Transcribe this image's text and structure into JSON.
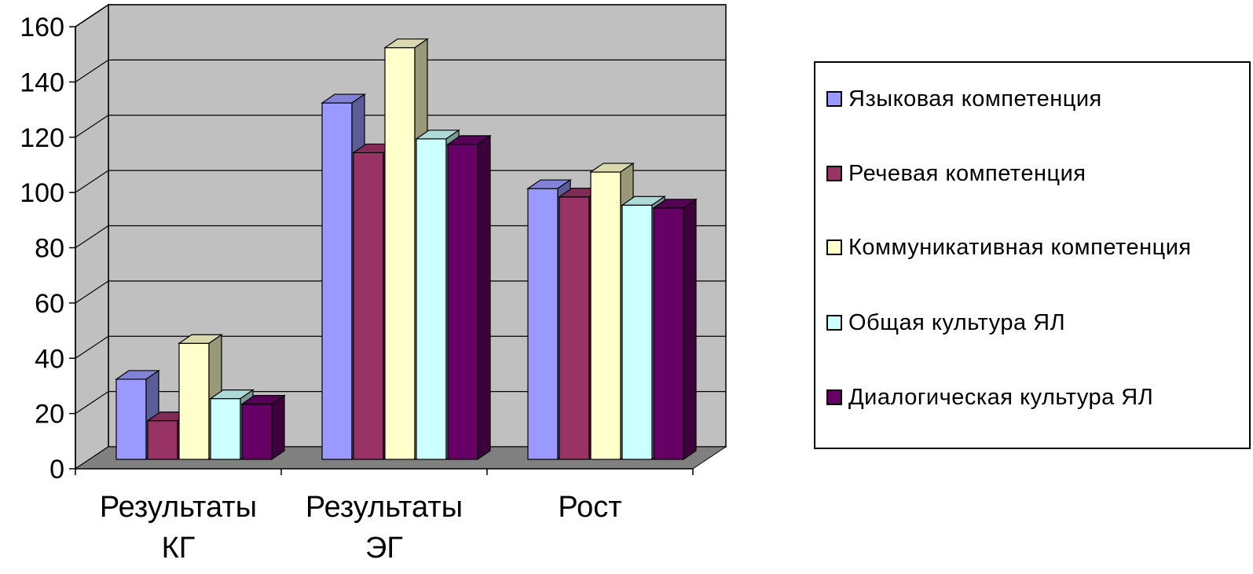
{
  "chart_data": {
    "type": "bar",
    "style": "3d-clustered-column",
    "categories": [
      "Результаты КГ",
      "Результаты ЭГ",
      "Рост"
    ],
    "category_lines": [
      [
        "Результаты",
        "КГ"
      ],
      [
        "Результаты",
        "ЭГ"
      ],
      [
        "Рост"
      ]
    ],
    "series": [
      {
        "name": "Языковая компетенция",
        "color": "#9999ff",
        "values": [
          29,
          129,
          98
        ]
      },
      {
        "name": "Речевая компетенция",
        "color": "#993366",
        "values": [
          14,
          111,
          95
        ]
      },
      {
        "name": "Коммуникативная компетенция",
        "color": "#ffffcc",
        "values": [
          42,
          149,
          104
        ]
      },
      {
        "name": "Общая культура ЯЛ",
        "color": "#ccffff",
        "values": [
          22,
          116,
          92
        ]
      },
      {
        "name": "Диалогическая культура ЯЛ",
        "color": "#660066",
        "values": [
          20,
          114,
          91
        ]
      }
    ],
    "yticks": [
      "0",
      "20",
      "40",
      "60",
      "80",
      "100",
      "120",
      "140",
      "160"
    ],
    "ylim": [
      0,
      160
    ],
    "grid": true,
    "legend": "right",
    "wall_color": "#c0c0c0",
    "floor_color": "#808080"
  }
}
